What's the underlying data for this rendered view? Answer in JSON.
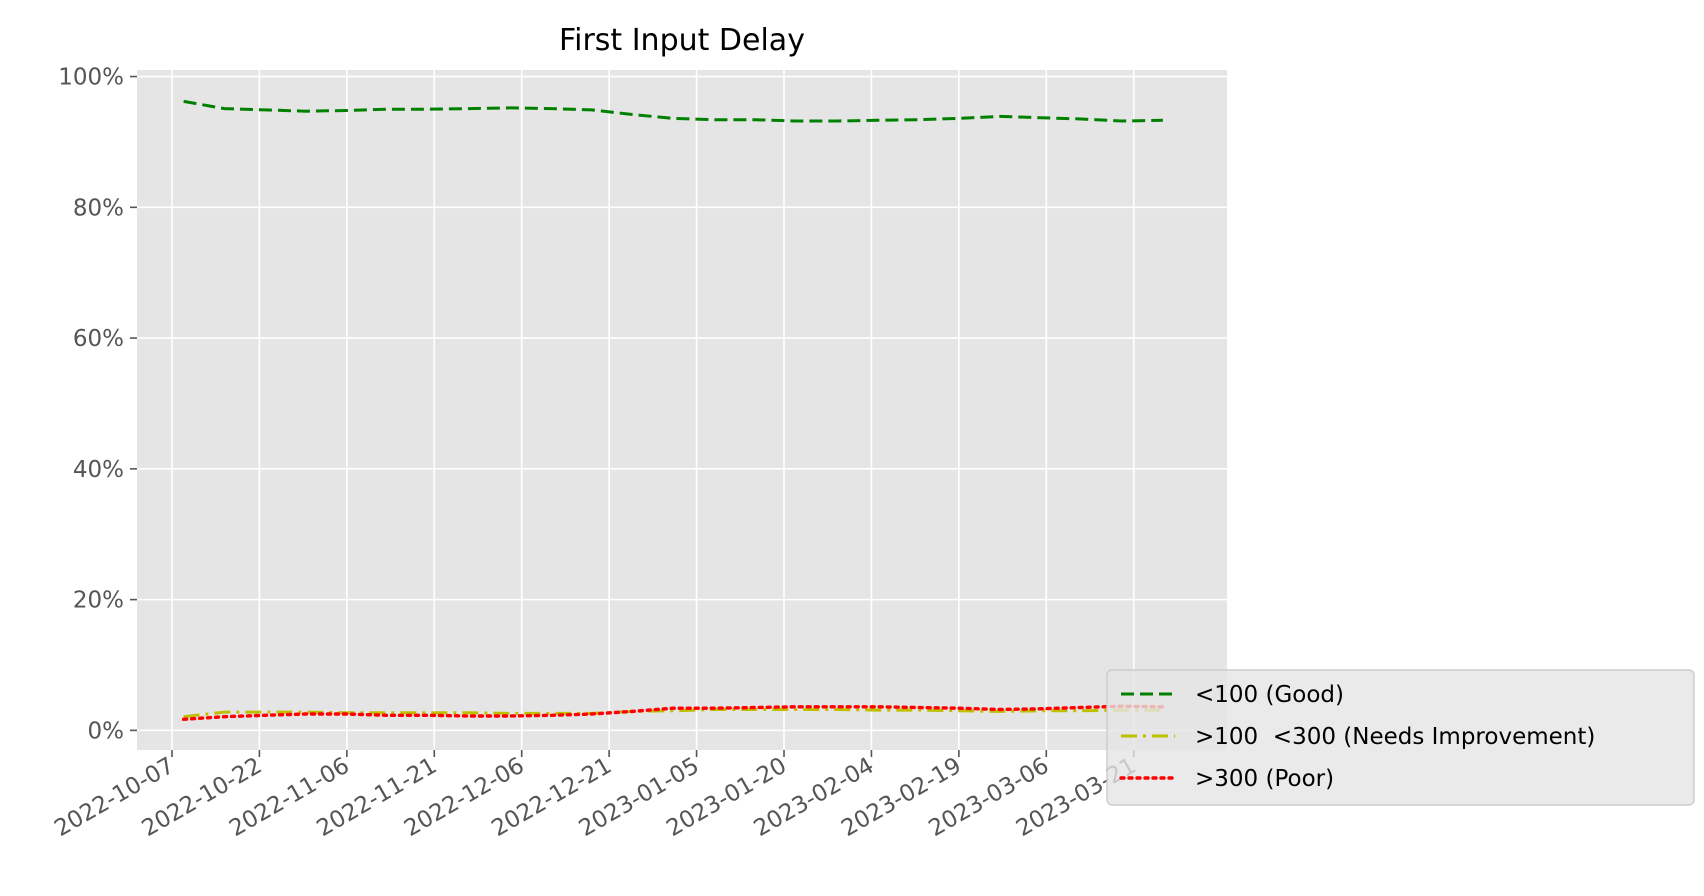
{
  "chart_data": {
    "type": "line",
    "title": "First Input Delay",
    "xlabel": "",
    "ylabel": "",
    "x_axis": {
      "kind": "date",
      "range": [
        "2022-10-01",
        "2023-04-06"
      ],
      "ticks": [
        "2022-10-07",
        "2022-10-22",
        "2022-11-06",
        "2022-11-21",
        "2022-12-06",
        "2022-12-21",
        "2023-01-05",
        "2023-01-20",
        "2023-02-04",
        "2023-02-19",
        "2023-03-06",
        "2023-03-21"
      ]
    },
    "y_axis": {
      "range": [
        -3,
        101
      ],
      "ticks": [
        0,
        20,
        40,
        60,
        80,
        100
      ],
      "tick_labels": [
        "0%",
        "20%",
        "40%",
        "60%",
        "80%",
        "100%"
      ]
    },
    "grid": true,
    "background": "#e5e5e5",
    "grid_color": "#ffffff",
    "legend_position": "lower-right, outside plot",
    "x": [
      "2022-10-09",
      "2022-10-16",
      "2022-10-23",
      "2022-10-30",
      "2022-11-06",
      "2022-11-13",
      "2022-11-20",
      "2022-11-27",
      "2022-12-04",
      "2022-12-11",
      "2022-12-18",
      "2022-12-25",
      "2023-01-01",
      "2023-01-08",
      "2023-01-15",
      "2023-01-22",
      "2023-01-29",
      "2023-02-05",
      "2023-02-12",
      "2023-02-19",
      "2023-02-26",
      "2023-03-05",
      "2023-03-12",
      "2023-03-19",
      "2023-03-26"
    ],
    "series": [
      {
        "name": "<100 (Good)",
        "color": "#008000",
        "dash": "dashed",
        "values": [
          96.2,
          95.1,
          94.9,
          94.7,
          94.8,
          95.0,
          95.0,
          95.1,
          95.2,
          95.1,
          94.9,
          94.2,
          93.6,
          93.4,
          93.4,
          93.2,
          93.2,
          93.3,
          93.4,
          93.6,
          93.9,
          93.7,
          93.5,
          93.2,
          93.3
        ]
      },
      {
        "name": ">100  <300 (Needs Improvement)",
        "color": "#bfbf00",
        "dash": "dashdot",
        "values": [
          2.1,
          2.8,
          2.8,
          2.8,
          2.7,
          2.7,
          2.7,
          2.7,
          2.6,
          2.6,
          2.6,
          2.9,
          3.0,
          3.2,
          3.2,
          3.2,
          3.2,
          3.1,
          3.1,
          3.0,
          2.9,
          3.0,
          3.0,
          3.1,
          3.1
        ]
      },
      {
        "name": ">300 (Poor)",
        "color": "#ff0000",
        "dash": "dotted",
        "values": [
          1.7,
          2.1,
          2.3,
          2.5,
          2.5,
          2.3,
          2.3,
          2.2,
          2.2,
          2.3,
          2.5,
          2.9,
          3.4,
          3.4,
          3.5,
          3.6,
          3.6,
          3.6,
          3.5,
          3.4,
          3.2,
          3.3,
          3.5,
          3.7,
          3.6
        ]
      }
    ]
  }
}
